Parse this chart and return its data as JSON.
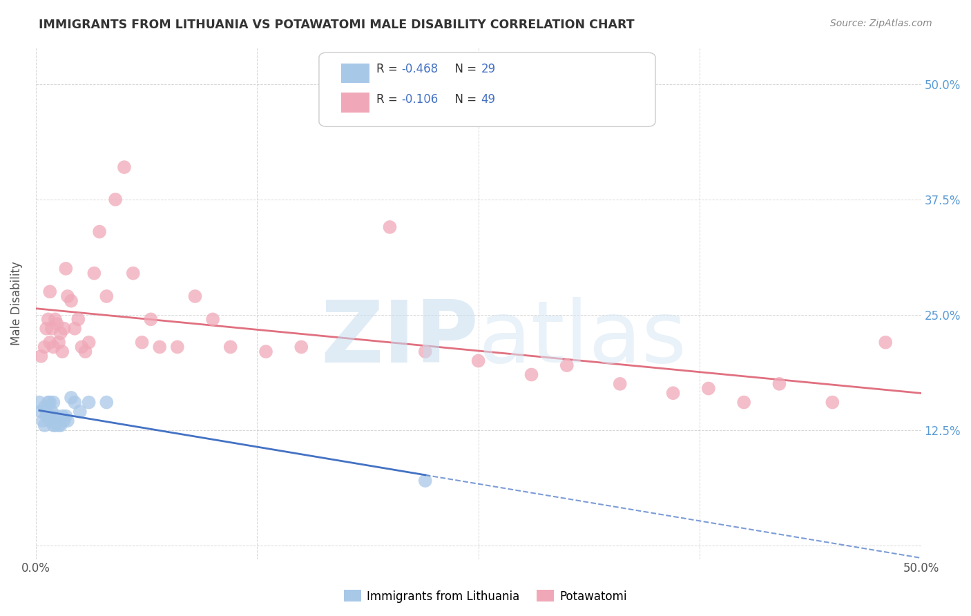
{
  "title": "IMMIGRANTS FROM LITHUANIA VS POTAWATOMI MALE DISABILITY CORRELATION CHART",
  "source": "Source: ZipAtlas.com",
  "ylabel": "Male Disability",
  "legend_label1": "Immigrants from Lithuania",
  "legend_label2": "Potawatomi",
  "legend_R1": "R = -0.468",
  "legend_N1": "N = 29",
  "legend_R2": "R = -0.106",
  "legend_N2": "N = 49",
  "xlim": [
    0.0,
    0.5
  ],
  "ylim": [
    -0.015,
    0.54
  ],
  "yticks": [
    0.0,
    0.125,
    0.25,
    0.375,
    0.5
  ],
  "ytick_labels_right": [
    "",
    "12.5%",
    "25.0%",
    "37.5%",
    "50.0%"
  ],
  "xticks": [
    0.0,
    0.125,
    0.25,
    0.375,
    0.5
  ],
  "xtick_labels": [
    "0.0%",
    "",
    "",
    "",
    "50.0%"
  ],
  "color_blue": "#A8C8E8",
  "color_pink": "#F0A8B8",
  "color_blue_line": "#4472C4",
  "color_pink_line": "#E07080",
  "blue_scatter_x": [
    0.002,
    0.003,
    0.004,
    0.005,
    0.005,
    0.006,
    0.006,
    0.007,
    0.007,
    0.008,
    0.008,
    0.009,
    0.009,
    0.01,
    0.01,
    0.011,
    0.012,
    0.013,
    0.014,
    0.015,
    0.016,
    0.017,
    0.018,
    0.02,
    0.022,
    0.025,
    0.03,
    0.04,
    0.22
  ],
  "blue_scatter_y": [
    0.155,
    0.145,
    0.135,
    0.15,
    0.13,
    0.145,
    0.14,
    0.14,
    0.155,
    0.155,
    0.135,
    0.145,
    0.14,
    0.13,
    0.155,
    0.13,
    0.14,
    0.13,
    0.13,
    0.14,
    0.135,
    0.14,
    0.135,
    0.16,
    0.155,
    0.145,
    0.155,
    0.155,
    0.07
  ],
  "pink_scatter_x": [
    0.003,
    0.005,
    0.006,
    0.007,
    0.008,
    0.008,
    0.009,
    0.01,
    0.011,
    0.012,
    0.013,
    0.014,
    0.015,
    0.016,
    0.017,
    0.018,
    0.02,
    0.022,
    0.024,
    0.026,
    0.028,
    0.03,
    0.033,
    0.036,
    0.04,
    0.045,
    0.05,
    0.055,
    0.06,
    0.065,
    0.07,
    0.08,
    0.09,
    0.1,
    0.11,
    0.13,
    0.15,
    0.2,
    0.22,
    0.25,
    0.28,
    0.3,
    0.33,
    0.36,
    0.38,
    0.4,
    0.42,
    0.45,
    0.48
  ],
  "pink_scatter_y": [
    0.205,
    0.215,
    0.235,
    0.245,
    0.22,
    0.275,
    0.235,
    0.215,
    0.245,
    0.24,
    0.22,
    0.23,
    0.21,
    0.235,
    0.3,
    0.27,
    0.265,
    0.235,
    0.245,
    0.215,
    0.21,
    0.22,
    0.295,
    0.34,
    0.27,
    0.375,
    0.41,
    0.295,
    0.22,
    0.245,
    0.215,
    0.215,
    0.27,
    0.245,
    0.215,
    0.21,
    0.215,
    0.345,
    0.21,
    0.2,
    0.185,
    0.195,
    0.175,
    0.165,
    0.17,
    0.155,
    0.175,
    0.155,
    0.22
  ]
}
